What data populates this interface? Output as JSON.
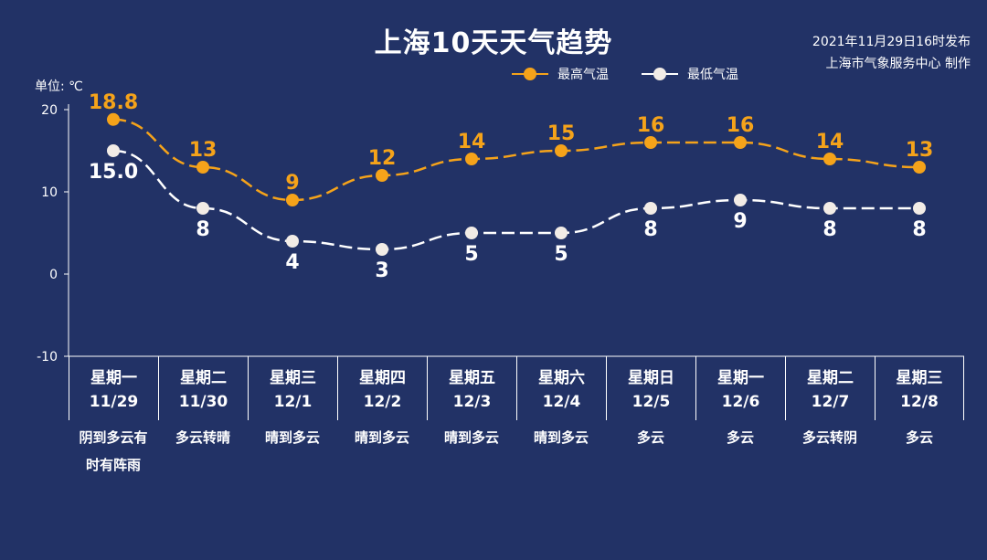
{
  "header": {
    "title": "上海10天天气趋势",
    "issued_time": "2021年11月29日16时发布",
    "issuer": "上海市气象服务中心 制作",
    "unit": "单位: ℃"
  },
  "legend": {
    "high_label": "最高气温",
    "low_label": "最低气温"
  },
  "colors": {
    "background": "#223266",
    "high": "#f5a31a",
    "low": "#ffffff",
    "axis": "#ffffff"
  },
  "days": [
    {
      "weekday": "星期一",
      "date": "11/29",
      "weather": "阴到多云有时有阵雨"
    },
    {
      "weekday": "星期二",
      "date": "11/30",
      "weather": "多云转晴"
    },
    {
      "weekday": "星期三",
      "date": "12/1",
      "weather": "晴到多云"
    },
    {
      "weekday": "星期四",
      "date": "12/2",
      "weather": "晴到多云"
    },
    {
      "weekday": "星期五",
      "date": "12/3",
      "weather": "晴到多云"
    },
    {
      "weekday": "星期六",
      "date": "12/4",
      "weather": "晴到多云"
    },
    {
      "weekday": "星期日",
      "date": "12/5",
      "weather": "多云"
    },
    {
      "weekday": "星期一",
      "date": "12/6",
      "weather": "多云"
    },
    {
      "weekday": "星期二",
      "date": "12/7",
      "weather": "多云转阴"
    },
    {
      "weekday": "星期三",
      "date": "12/8",
      "weather": "多云"
    }
  ],
  "chart_data": {
    "type": "line",
    "title": "上海10天天气趋势",
    "categories": [
      "11/29",
      "11/30",
      "12/1",
      "12/2",
      "12/3",
      "12/4",
      "12/5",
      "12/6",
      "12/7",
      "12/8"
    ],
    "series": [
      {
        "name": "最高气温",
        "values": [
          18.8,
          13,
          9,
          12,
          14,
          15,
          16,
          16,
          14,
          13
        ],
        "labels": [
          "18.8",
          "13",
          "9",
          "12",
          "14",
          "15",
          "16",
          "16",
          "14",
          "13"
        ],
        "color": "#f5a31a",
        "style": "dashed"
      },
      {
        "name": "最低气温",
        "values": [
          15.0,
          8,
          4,
          3,
          5,
          5,
          8,
          9,
          8,
          8
        ],
        "labels": [
          "15.0",
          "8",
          "4",
          "3",
          "5",
          "5",
          "8",
          "9",
          "8",
          "8"
        ],
        "color": "#ffffff",
        "style": "dashed"
      }
    ],
    "ylabel": "单位: ℃",
    "ylim": [
      -10,
      20
    ],
    "yticks": [
      -10,
      0,
      10,
      20
    ],
    "grid": false,
    "legend_position": "top-right"
  }
}
